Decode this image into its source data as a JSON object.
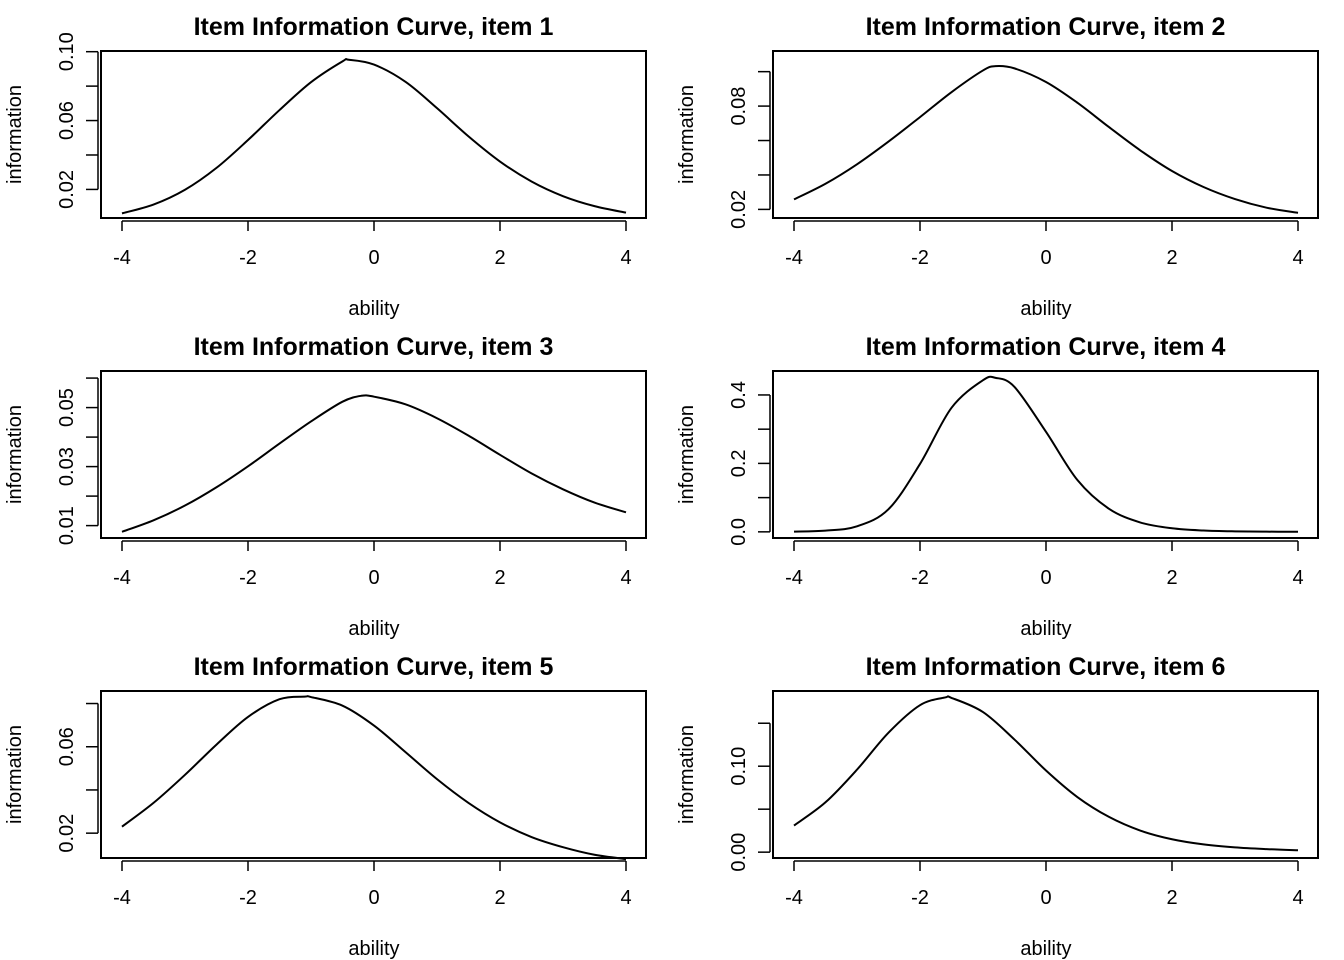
{
  "chart_data": [
    {
      "type": "line",
      "title": "Item Information Curve, item 1",
      "xlabel": "ability",
      "ylabel": "information",
      "xlim": [
        -4,
        4
      ],
      "ylim": [
        0.0034,
        0.1004
      ],
      "xticks": [
        -4,
        -2,
        0,
        2,
        4
      ],
      "yticks": [
        0.02,
        0.04,
        0.06,
        0.08,
        0.1
      ],
      "ytick_labels": [
        "0.02",
        "",
        "0.06",
        "",
        "0.10"
      ],
      "x": [
        -4,
        -3.5,
        -3,
        -2.5,
        -2,
        -1.5,
        -1,
        -0.5,
        -0.4,
        0,
        0.5,
        1,
        1.5,
        2,
        2.5,
        3,
        3.5,
        4
      ],
      "values": [
        0.0061,
        0.0112,
        0.0198,
        0.0325,
        0.0487,
        0.0661,
        0.0823,
        0.0944,
        0.0953,
        0.0925,
        0.0825,
        0.0672,
        0.0508,
        0.0362,
        0.0246,
        0.0161,
        0.0103,
        0.0065
      ]
    },
    {
      "type": "line",
      "title": "Item Information Curve, item 2",
      "xlabel": "ability",
      "ylabel": "information",
      "xlim": [
        -4,
        4
      ],
      "ylim": [
        0.015,
        0.112
      ],
      "xticks": [
        -4,
        -2,
        0,
        2,
        4
      ],
      "yticks": [
        0.02,
        0.04,
        0.06,
        0.08,
        0.1
      ],
      "ytick_labels": [
        "0.02",
        "",
        "",
        "0.08",
        ""
      ],
      "x": [
        -4,
        -3.5,
        -3,
        -2.5,
        -2,
        -1.5,
        -1,
        -0.8,
        -0.5,
        0,
        0.5,
        1,
        1.5,
        2,
        2.5,
        3,
        3.5,
        4
      ],
      "values": [
        0.0258,
        0.0349,
        0.0462,
        0.0594,
        0.0736,
        0.0881,
        0.1007,
        0.1032,
        0.1019,
        0.094,
        0.0819,
        0.0678,
        0.0542,
        0.0423,
        0.033,
        0.026,
        0.021,
        0.018
      ]
    },
    {
      "type": "line",
      "title": "Item Information Curve, item 3",
      "xlabel": "ability",
      "ylabel": "information",
      "xlim": [
        -4,
        4
      ],
      "ylim": [
        0.0058,
        0.0624
      ],
      "xticks": [
        -4,
        -2,
        0,
        2,
        4
      ],
      "yticks": [
        0.01,
        0.02,
        0.03,
        0.04,
        0.05,
        0.06
      ],
      "ytick_labels": [
        "0.01",
        "",
        "0.03",
        "",
        "0.05",
        ""
      ],
      "x": [
        -4,
        -3.5,
        -3,
        -2.5,
        -2,
        -1.5,
        -1,
        -0.5,
        -0.2,
        0,
        0.5,
        1,
        1.5,
        2,
        2.5,
        3,
        3.5,
        4
      ],
      "values": [
        0.0079,
        0.0118,
        0.0168,
        0.023,
        0.0301,
        0.0378,
        0.0453,
        0.052,
        0.054,
        0.0537,
        0.0511,
        0.0464,
        0.0405,
        0.034,
        0.0277,
        0.0223,
        0.0178,
        0.0145
      ]
    },
    {
      "type": "line",
      "title": "Item Information Curve, item 4",
      "xlabel": "ability",
      "ylabel": "information",
      "xlim": [
        -4,
        4
      ],
      "ylim": [
        -0.018,
        0.47
      ],
      "xticks": [
        -4,
        -2,
        0,
        2,
        4
      ],
      "yticks": [
        0.0,
        0.1,
        0.2,
        0.3,
        0.4
      ],
      "ytick_labels": [
        "0.0",
        "",
        "0.2",
        "",
        "0.4"
      ],
      "x": [
        -4,
        -3.5,
        -3,
        -2.5,
        -2,
        -1.5,
        -1,
        -0.8,
        -0.5,
        0,
        0.5,
        1,
        1.5,
        2,
        2.5,
        3,
        3.5,
        4
      ],
      "values": [
        0.0008,
        0.0036,
        0.0162,
        0.0662,
        0.1984,
        0.3625,
        0.4432,
        0.45,
        0.4234,
        0.2923,
        0.151,
        0.0673,
        0.0272,
        0.0104,
        0.0039,
        0.0014,
        0.0005,
        0.0002
      ]
    },
    {
      "type": "line",
      "title": "Item Information Curve, item 5",
      "xlabel": "ability",
      "ylabel": "information",
      "xlim": [
        -4,
        4
      ],
      "ylim": [
        0.0085,
        0.0858
      ],
      "xticks": [
        -4,
        -2,
        0,
        2,
        4
      ],
      "yticks": [
        0.02,
        0.04,
        0.06,
        0.08
      ],
      "ytick_labels": [
        "0.02",
        "",
        "0.06",
        ""
      ],
      "x": [
        -4,
        -3.5,
        -3,
        -2.5,
        -2,
        -1.5,
        -1.1,
        -1,
        -0.5,
        0,
        0.5,
        1,
        1.5,
        2,
        2.5,
        3,
        3.5,
        4
      ],
      "values": [
        0.023,
        0.034,
        0.047,
        0.061,
        0.0738,
        0.082,
        0.0832,
        0.083,
        0.079,
        0.0698,
        0.0575,
        0.045,
        0.034,
        0.025,
        0.0182,
        0.0135,
        0.01,
        0.008
      ]
    },
    {
      "type": "line",
      "title": "Item Information Curve, item 6",
      "xlabel": "ability",
      "ylabel": "information",
      "xlim": [
        -4,
        4
      ],
      "ylim": [
        -0.0068,
        0.1875
      ],
      "xticks": [
        -4,
        -2,
        0,
        2,
        4
      ],
      "yticks": [
        0.0,
        0.05,
        0.1,
        0.15
      ],
      "ytick_labels": [
        "0.00",
        "",
        "0.10",
        ""
      ],
      "x": [
        -4,
        -3.5,
        -3,
        -2.5,
        -2,
        -1.6,
        -1.5,
        -1,
        -0.5,
        0,
        0.5,
        1,
        1.5,
        2,
        2.5,
        3,
        3.5,
        4
      ],
      "values": [
        0.031,
        0.058,
        0.096,
        0.139,
        0.171,
        0.18,
        0.1795,
        0.163,
        0.131,
        0.095,
        0.064,
        0.041,
        0.025,
        0.015,
        0.009,
        0.0055,
        0.0035,
        0.0022
      ]
    }
  ]
}
